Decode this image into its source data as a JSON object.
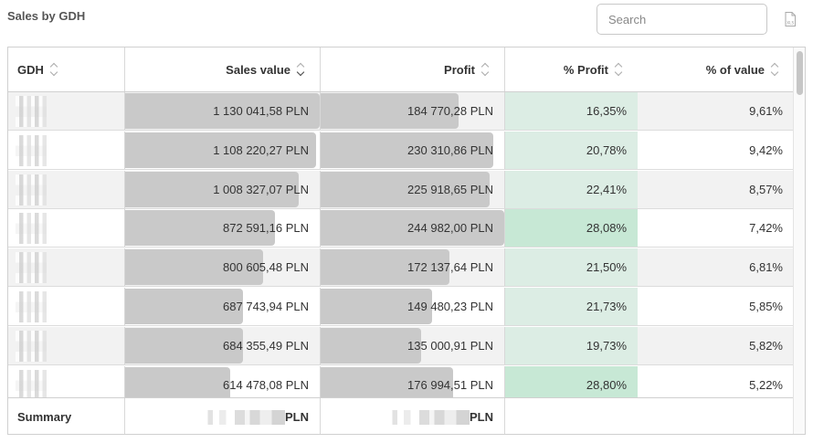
{
  "title": "Sales by GDH",
  "search": {
    "placeholder": "Search"
  },
  "export_icon": "xls-file-icon",
  "colors": {
    "bar": "#c9c9c9",
    "profit_low": "#dcede4",
    "profit_high": "#c7e8d5"
  },
  "columns": [
    "GDH",
    "Sales value",
    "Profit",
    "% Profit",
    "% of value"
  ],
  "sorted_column": "Sales value",
  "rows": [
    {
      "sales": "1 130 041,58 PLN",
      "sales_num": 1130041.58,
      "profit": "184 770,28 PLN",
      "profit_num": 184770.28,
      "pct_profit": "16,35%",
      "pct_profit_num": 16.35,
      "pct_value": "9,61%"
    },
    {
      "sales": "1 108 220,27 PLN",
      "sales_num": 1108220.27,
      "profit": "230 310,86 PLN",
      "profit_num": 230310.86,
      "pct_profit": "20,78%",
      "pct_profit_num": 20.78,
      "pct_value": "9,42%"
    },
    {
      "sales": "1 008 327,07 PLN",
      "sales_num": 1008327.07,
      "profit": "225 918,65 PLN",
      "profit_num": 225918.65,
      "pct_profit": "22,41%",
      "pct_profit_num": 22.41,
      "pct_value": "8,57%"
    },
    {
      "sales": "872 591,16 PLN",
      "sales_num": 872591.16,
      "profit": "244 982,00 PLN",
      "profit_num": 244982.0,
      "pct_profit": "28,08%",
      "pct_profit_num": 28.08,
      "pct_value": "7,42%"
    },
    {
      "sales": "800 605,48 PLN",
      "sales_num": 800605.48,
      "profit": "172 137,64 PLN",
      "profit_num": 172137.64,
      "pct_profit": "21,50%",
      "pct_profit_num": 21.5,
      "pct_value": "6,81%"
    },
    {
      "sales": "687 743,94 PLN",
      "sales_num": 687743.94,
      "profit": "149 480,23 PLN",
      "profit_num": 149480.23,
      "pct_profit": "21,73%",
      "pct_profit_num": 21.73,
      "pct_value": "5,85%"
    },
    {
      "sales": "684 355,49 PLN",
      "sales_num": 684355.49,
      "profit": "135 000,91 PLN",
      "profit_num": 135000.91,
      "pct_profit": "19,73%",
      "pct_profit_num": 19.73,
      "pct_value": "5,82%"
    },
    {
      "sales": "614 478,08 PLN",
      "sales_num": 614478.08,
      "profit": "176 994,51 PLN",
      "profit_num": 176994.51,
      "pct_profit": "28,80%",
      "pct_profit_num": 28.8,
      "pct_value": "5,22%"
    }
  ],
  "summary": {
    "label": "Summary",
    "sales_suffix": "PLN",
    "profit_suffix": "PLN"
  }
}
